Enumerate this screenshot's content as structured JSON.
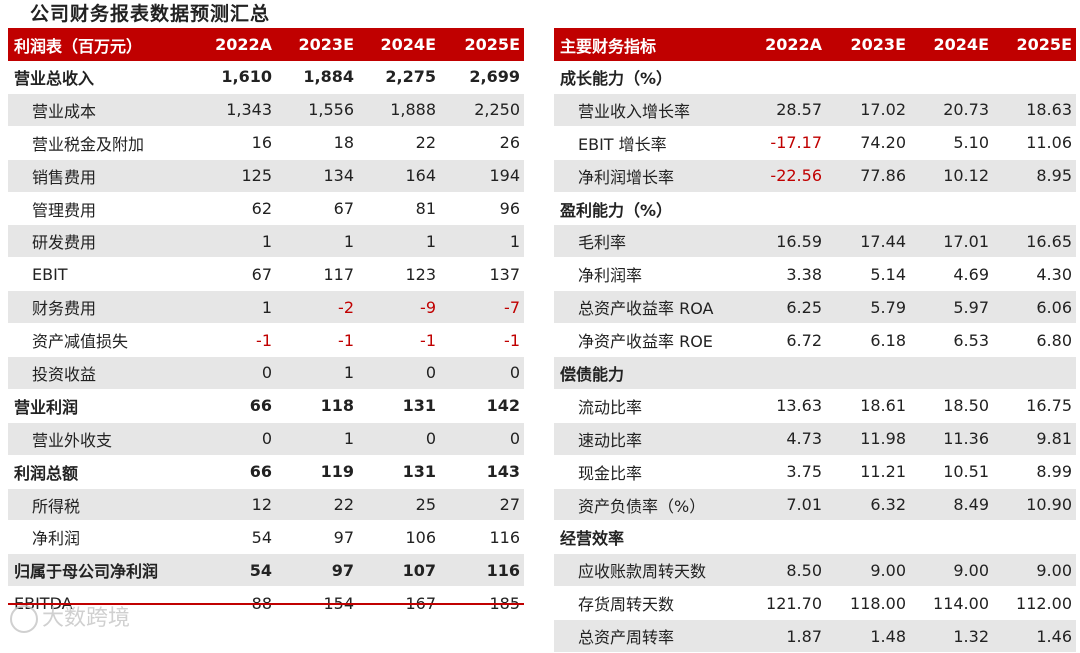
{
  "title": "公司财务报表数据预测汇总",
  "left": {
    "header": [
      "利润表（百万元）",
      "2022A",
      "2023E",
      "2024E",
      "2025E"
    ],
    "rows": [
      {
        "label": "营业总收入",
        "values": [
          "1,610",
          "1,884",
          "2,275",
          "2,699"
        ],
        "bold": true,
        "shade": false,
        "indent": false
      },
      {
        "label": "营业成本",
        "values": [
          "1,343",
          "1,556",
          "1,888",
          "2,250"
        ],
        "bold": false,
        "shade": true,
        "indent": true
      },
      {
        "label": "营业税金及附加",
        "values": [
          "16",
          "18",
          "22",
          "26"
        ],
        "bold": false,
        "shade": false,
        "indent": true
      },
      {
        "label": "销售费用",
        "values": [
          "125",
          "134",
          "164",
          "194"
        ],
        "bold": false,
        "shade": true,
        "indent": true
      },
      {
        "label": "管理费用",
        "values": [
          "62",
          "67",
          "81",
          "96"
        ],
        "bold": false,
        "shade": false,
        "indent": true
      },
      {
        "label": "研发费用",
        "values": [
          "1",
          "1",
          "1",
          "1"
        ],
        "bold": false,
        "shade": true,
        "indent": true
      },
      {
        "label": "EBIT",
        "values": [
          "67",
          "117",
          "123",
          "137"
        ],
        "bold": false,
        "shade": false,
        "indent": true
      },
      {
        "label": "财务费用",
        "values": [
          "1",
          "-2",
          "-9",
          "-7"
        ],
        "bold": false,
        "shade": true,
        "indent": true
      },
      {
        "label": "资产减值损失",
        "values": [
          "-1",
          "-1",
          "-1",
          "-1"
        ],
        "bold": false,
        "shade": false,
        "indent": true
      },
      {
        "label": "投资收益",
        "values": [
          "0",
          "1",
          "0",
          "0"
        ],
        "bold": false,
        "shade": true,
        "indent": true
      },
      {
        "label": "营业利润",
        "values": [
          "66",
          "118",
          "131",
          "142"
        ],
        "bold": true,
        "shade": false,
        "indent": false
      },
      {
        "label": "营业外收支",
        "values": [
          "0",
          "1",
          "0",
          "0"
        ],
        "bold": false,
        "shade": true,
        "indent": true
      },
      {
        "label": "利润总额",
        "values": [
          "66",
          "119",
          "131",
          "143"
        ],
        "bold": true,
        "shade": false,
        "indent": false
      },
      {
        "label": "所得税",
        "values": [
          "12",
          "22",
          "25",
          "27"
        ],
        "bold": false,
        "shade": true,
        "indent": true
      },
      {
        "label": "净利润",
        "values": [
          "54",
          "97",
          "106",
          "116"
        ],
        "bold": false,
        "shade": false,
        "indent": true
      },
      {
        "label": "归属于母公司净利润",
        "values": [
          "54",
          "97",
          "107",
          "116"
        ],
        "bold": true,
        "shade": true,
        "indent": false
      },
      {
        "label": "EBITDA",
        "values": [
          "88",
          "154",
          "167",
          "185"
        ],
        "bold": false,
        "shade": false,
        "indent": false
      }
    ]
  },
  "right": {
    "header": [
      "主要财务指标",
      "2022A",
      "2023E",
      "2024E",
      "2025E"
    ],
    "rows": [
      {
        "label": "成长能力（%）",
        "values": [
          "",
          "",
          "",
          ""
        ],
        "bold": true,
        "shade": false,
        "indent": false
      },
      {
        "label": "营业收入增长率",
        "values": [
          "28.57",
          "17.02",
          "20.73",
          "18.63"
        ],
        "bold": false,
        "shade": true,
        "indent": true
      },
      {
        "label": "EBIT 增长率",
        "values": [
          "-17.17",
          "74.20",
          "5.10",
          "11.06"
        ],
        "bold": false,
        "shade": false,
        "indent": true
      },
      {
        "label": "净利润增长率",
        "values": [
          "-22.56",
          "77.86",
          "10.12",
          "8.95"
        ],
        "bold": false,
        "shade": true,
        "indent": true
      },
      {
        "label": "盈利能力（%）",
        "values": [
          "",
          "",
          "",
          ""
        ],
        "bold": true,
        "shade": false,
        "indent": false
      },
      {
        "label": "毛利率",
        "values": [
          "16.59",
          "17.44",
          "17.01",
          "16.65"
        ],
        "bold": false,
        "shade": true,
        "indent": true
      },
      {
        "label": "净利润率",
        "values": [
          "3.38",
          "5.14",
          "4.69",
          "4.30"
        ],
        "bold": false,
        "shade": false,
        "indent": true
      },
      {
        "label": "总资产收益率 ROA",
        "values": [
          "6.25",
          "5.79",
          "5.97",
          "6.06"
        ],
        "bold": false,
        "shade": true,
        "indent": true
      },
      {
        "label": "净资产收益率 ROE",
        "values": [
          "6.72",
          "6.18",
          "6.53",
          "6.80"
        ],
        "bold": false,
        "shade": false,
        "indent": true
      },
      {
        "label": "偿债能力",
        "values": [
          "",
          "",
          "",
          ""
        ],
        "bold": true,
        "shade": true,
        "indent": false
      },
      {
        "label": "流动比率",
        "values": [
          "13.63",
          "18.61",
          "18.50",
          "16.75"
        ],
        "bold": false,
        "shade": false,
        "indent": true
      },
      {
        "label": "速动比率",
        "values": [
          "4.73",
          "11.98",
          "11.36",
          "9.81"
        ],
        "bold": false,
        "shade": true,
        "indent": true
      },
      {
        "label": "现金比率",
        "values": [
          "3.75",
          "11.21",
          "10.51",
          "8.99"
        ],
        "bold": false,
        "shade": false,
        "indent": true
      },
      {
        "label": "资产负债率（%）",
        "values": [
          "7.01",
          "6.32",
          "8.49",
          "10.90"
        ],
        "bold": false,
        "shade": true,
        "indent": true
      },
      {
        "label": "经营效率",
        "values": [
          "",
          "",
          "",
          ""
        ],
        "bold": true,
        "shade": false,
        "indent": false
      },
      {
        "label": "应收账款周转天数",
        "values": [
          "8.50",
          "9.00",
          "9.00",
          "9.00"
        ],
        "bold": false,
        "shade": true,
        "indent": true
      },
      {
        "label": "存货周转天数",
        "values": [
          "121.70",
          "118.00",
          "114.00",
          "112.00"
        ],
        "bold": false,
        "shade": false,
        "indent": true
      },
      {
        "label": "总资产周转率",
        "values": [
          "1.87",
          "1.48",
          "1.32",
          "1.46"
        ],
        "bold": false,
        "shade": true,
        "indent": true
      }
    ]
  },
  "watermark": "大数跨境",
  "colors": {
    "accent": "#c00000",
    "shade": "#e6e6e6",
    "negative": "#c00000"
  }
}
